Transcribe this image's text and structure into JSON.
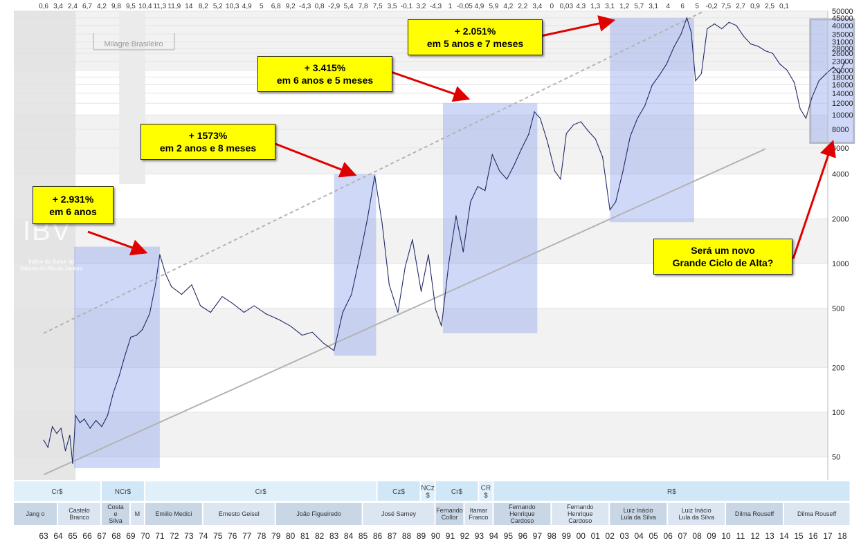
{
  "chart_data": {
    "type": "line",
    "title": "",
    "watermark": "IBV",
    "watermark_subtitle": "Índice da Bolsa de Valores do Rio de Janeiro",
    "period_label": "Milagre Brasileiro",
    "y_scale": "log",
    "ylim": [
      35,
      50000
    ],
    "xlim": [
      1963,
      2018.6
    ],
    "y_ticks": [
      50,
      100,
      200,
      500,
      1000,
      2000,
      4000,
      6000,
      8000,
      10000,
      12000,
      14000,
      16000,
      18000,
      20000,
      23000,
      26000,
      28000,
      31000,
      35000,
      40000,
      45000,
      50000
    ],
    "x_tick_labels": [
      "63",
      "64",
      "65",
      "66",
      "67",
      "68",
      "69",
      "70",
      "71",
      "72",
      "73",
      "74",
      "75",
      "76",
      "77",
      "78",
      "79",
      "80",
      "81",
      "82",
      "83",
      "84",
      "85",
      "86",
      "87",
      "88",
      "89",
      "90",
      "91",
      "92",
      "93",
      "94",
      "95",
      "96",
      "97",
      "98",
      "99",
      "00",
      "01",
      "02",
      "03",
      "04",
      "05",
      "06",
      "07",
      "08",
      "09",
      "10",
      "11",
      "12",
      "13",
      "14",
      "15",
      "16",
      "17",
      "18"
    ],
    "gdp_growth_top": [
      "0,6",
      "3,4",
      "2,4",
      "6,7",
      "4,2",
      "9,8",
      "9,5",
      "10,4",
      "11,3",
      "11,9",
      "14",
      "8,2",
      "5,2",
      "10,3",
      "4,9",
      "5",
      "6,8",
      "9,2",
      "-4,3",
      "0,8",
      "-2,9",
      "5,4",
      "7,8",
      "7,5",
      "3,5",
      "-0,1",
      "3,2",
      "-4,3",
      "1",
      "-0,05",
      "4,9",
      "5,9",
      "4,2",
      "2,2",
      "3,4",
      "0",
      "0,03",
      "4,3",
      "1,3",
      "3,1",
      "1,2",
      "5,7",
      "3,1",
      "4",
      "6",
      "5",
      "-0,2",
      "7,5",
      "2,7",
      "0,9",
      "2,5",
      "0,1"
    ],
    "series": [
      {
        "color": "#1f2a66",
        "points": [
          [
            1963.0,
            65
          ],
          [
            1963.3,
            58
          ],
          [
            1963.6,
            80
          ],
          [
            1963.9,
            72
          ],
          [
            1964.2,
            78
          ],
          [
            1964.5,
            55
          ],
          [
            1964.8,
            70
          ],
          [
            1965.0,
            45
          ],
          [
            1965.2,
            95
          ],
          [
            1965.5,
            85
          ],
          [
            1965.8,
            90
          ],
          [
            1966.2,
            78
          ],
          [
            1966.6,
            88
          ],
          [
            1967.0,
            80
          ],
          [
            1967.4,
            95
          ],
          [
            1967.8,
            135
          ],
          [
            1968.2,
            175
          ],
          [
            1968.6,
            240
          ],
          [
            1969.0,
            320
          ],
          [
            1969.4,
            330
          ],
          [
            1969.8,
            360
          ],
          [
            1970.3,
            460
          ],
          [
            1970.7,
            720
          ],
          [
            1971.0,
            1150
          ],
          [
            1971.4,
            850
          ],
          [
            1971.8,
            700
          ],
          [
            1972.5,
            620
          ],
          [
            1973.2,
            720
          ],
          [
            1973.8,
            520
          ],
          [
            1974.5,
            470
          ],
          [
            1975.3,
            600
          ],
          [
            1976.0,
            540
          ],
          [
            1976.8,
            470
          ],
          [
            1977.5,
            520
          ],
          [
            1978.3,
            460
          ],
          [
            1979.2,
            420
          ],
          [
            1980.0,
            380
          ],
          [
            1980.8,
            330
          ],
          [
            1981.5,
            345
          ],
          [
            1982.3,
            290
          ],
          [
            1983.0,
            260
          ],
          [
            1983.6,
            470
          ],
          [
            1984.2,
            620
          ],
          [
            1984.8,
            1150
          ],
          [
            1985.3,
            2000
          ],
          [
            1985.8,
            3900
          ],
          [
            1986.3,
            1900
          ],
          [
            1986.8,
            720
          ],
          [
            1987.4,
            470
          ],
          [
            1987.9,
            950
          ],
          [
            1988.4,
            1450
          ],
          [
            1989.0,
            650
          ],
          [
            1989.5,
            1150
          ],
          [
            1990.0,
            490
          ],
          [
            1990.4,
            380
          ],
          [
            1990.9,
            1000
          ],
          [
            1991.4,
            2100
          ],
          [
            1991.9,
            1200
          ],
          [
            1992.4,
            2600
          ],
          [
            1992.9,
            3300
          ],
          [
            1993.4,
            3100
          ],
          [
            1993.9,
            5400
          ],
          [
            1994.4,
            4200
          ],
          [
            1994.9,
            3700
          ],
          [
            1995.4,
            4600
          ],
          [
            1995.9,
            5900
          ],
          [
            1996.4,
            7400
          ],
          [
            1996.8,
            10500
          ],
          [
            1997.2,
            9500
          ],
          [
            1997.7,
            6600
          ],
          [
            1998.2,
            4200
          ],
          [
            1998.6,
            3700
          ],
          [
            1999.0,
            7500
          ],
          [
            1999.5,
            8600
          ],
          [
            2000.0,
            9000
          ],
          [
            2000.5,
            7800
          ],
          [
            2001.0,
            6900
          ],
          [
            2001.5,
            5200
          ],
          [
            2002.0,
            2300
          ],
          [
            2002.4,
            2600
          ],
          [
            2002.9,
            4200
          ],
          [
            2003.4,
            7200
          ],
          [
            2003.9,
            9500
          ],
          [
            2004.4,
            11500
          ],
          [
            2004.9,
            15800
          ],
          [
            2005.4,
            18500
          ],
          [
            2005.9,
            22000
          ],
          [
            2006.4,
            28500
          ],
          [
            2006.9,
            35000
          ],
          [
            2007.3,
            45000
          ],
          [
            2007.6,
            36000
          ],
          [
            2007.9,
            17000
          ],
          [
            2008.3,
            19000
          ],
          [
            2008.7,
            38000
          ],
          [
            2009.2,
            41000
          ],
          [
            2009.7,
            38000
          ],
          [
            2010.2,
            42000
          ],
          [
            2010.7,
            40000
          ],
          [
            2011.2,
            34000
          ],
          [
            2011.7,
            30000
          ],
          [
            2012.2,
            29000
          ],
          [
            2012.7,
            27000
          ],
          [
            2013.2,
            26000
          ],
          [
            2013.7,
            22000
          ],
          [
            2014.2,
            20000
          ],
          [
            2014.7,
            16500
          ],
          [
            2015.1,
            11000
          ],
          [
            2015.5,
            9500
          ],
          [
            2015.9,
            13000
          ],
          [
            2016.4,
            17000
          ],
          [
            2016.9,
            19000
          ],
          [
            2017.4,
            21000
          ],
          [
            2017.8,
            19000
          ],
          [
            2018.2,
            23000
          ]
        ]
      }
    ],
    "trendlines": [
      {
        "name": "lower",
        "color": "#b3b3b3",
        "style": "solid",
        "from": [
          1963.0,
          38
        ],
        "to": [
          2012.7,
          5900
        ]
      },
      {
        "name": "upper",
        "color": "#b3b3b3",
        "style": "dashed",
        "from": [
          1963.0,
          340
        ],
        "to": [
          2008.5,
          50000
        ]
      }
    ],
    "highlight_boxes": [
      {
        "x0": 1965.1,
        "x1": 1971.0,
        "y0": 42,
        "y1": 1300
      },
      {
        "x0": 1983.0,
        "x1": 1985.9,
        "y0": 240,
        "y1": 4000
      },
      {
        "x0": 1990.5,
        "x1": 1997.0,
        "y0": 340,
        "y1": 12000
      },
      {
        "x0": 2002.0,
        "x1": 2007.8,
        "y0": 1900,
        "y1": 45000
      },
      {
        "x0": 2015.8,
        "x1": 2018.8,
        "y0": 6500,
        "y1": 44000
      }
    ],
    "annotations": [
      {
        "lines": [
          "+ 2.931%",
          "em 6 anos"
        ],
        "target": [
          1969.9,
          1200
        ]
      },
      {
        "lines": [
          "+ 1573%",
          "em 2 anos e 8 meses"
        ],
        "target": [
          1984.3,
          4000
        ]
      },
      {
        "lines": [
          "+ 3.415%",
          "em 6 anos e 5 meses"
        ],
        "target": [
          1992.1,
          13000
        ]
      },
      {
        "lines": [
          "+ 2.051%",
          "em 5 anos e 7 meses"
        ],
        "target": [
          2002.1,
          43000
        ]
      },
      {
        "lines": [
          "Será um novo",
          "Grande Ciclo de Alta?"
        ],
        "target": [
          2017.3,
          6400
        ]
      }
    ],
    "currencies": [
      {
        "label": "Cr$",
        "x0": 1963.0,
        "x1": 1967.0
      },
      {
        "label": "NCr$",
        "x0": 1967.0,
        "x1": 1970.0
      },
      {
        "label": "Cr$",
        "x0": 1970.0,
        "x1": 1986.0
      },
      {
        "label": "Cz$",
        "x0": 1986.0,
        "x1": 1989.0
      },
      {
        "label": "NCz $",
        "x0": 1989.0,
        "x1": 1990.0
      },
      {
        "label": "Cr$",
        "x0": 1990.0,
        "x1": 1993.0
      },
      {
        "label": "CR $",
        "x0": 1993.0,
        "x1": 1994.0
      },
      {
        "label": "R$",
        "x0": 1994.0,
        "x1": 2018.6
      }
    ],
    "presidents": [
      {
        "label": "Jang o",
        "x0": 1963.0,
        "x1": 1964.0
      },
      {
        "label": "Castelo Branco",
        "x0": 1964.0,
        "x1": 1967.0
      },
      {
        "label": "Costa e Silva",
        "x0": 1967.0,
        "x1": 1969.0
      },
      {
        "label": "M",
        "x0": 1969.0,
        "x1": 1970.0
      },
      {
        "label": "Emilio Medici",
        "x0": 1970.0,
        "x1": 1974.0
      },
      {
        "label": "Ernesto Geisel",
        "x0": 1974.0,
        "x1": 1979.0
      },
      {
        "label": "João Figueiredo",
        "x0": 1979.0,
        "x1": 1985.0
      },
      {
        "label": "José Sarney",
        "x0": 1985.0,
        "x1": 1990.0
      },
      {
        "label": "Fernando Collor",
        "x0": 1990.0,
        "x1": 1992.0
      },
      {
        "label": "Itamar Franco",
        "x0": 1992.0,
        "x1": 1994.0
      },
      {
        "label": "Fernando Henrique Cardoso",
        "x0": 1994.0,
        "x1": 1998.0
      },
      {
        "label": "Fernando Henrique Cardoso",
        "x0": 1998.0,
        "x1": 2002.0
      },
      {
        "label": "Luiz Inácio Lula da Silva",
        "x0": 2002.0,
        "x1": 2006.0
      },
      {
        "label": "Luiz Inácio Lula da Silva",
        "x0": 2006.0,
        "x1": 2010.0
      },
      {
        "label": "Dilma Rouseff",
        "x0": 2010.0,
        "x1": 2014.0
      },
      {
        "label": "Dilma Rouseff",
        "x0": 2014.0,
        "x1": 2018.6
      }
    ]
  }
}
